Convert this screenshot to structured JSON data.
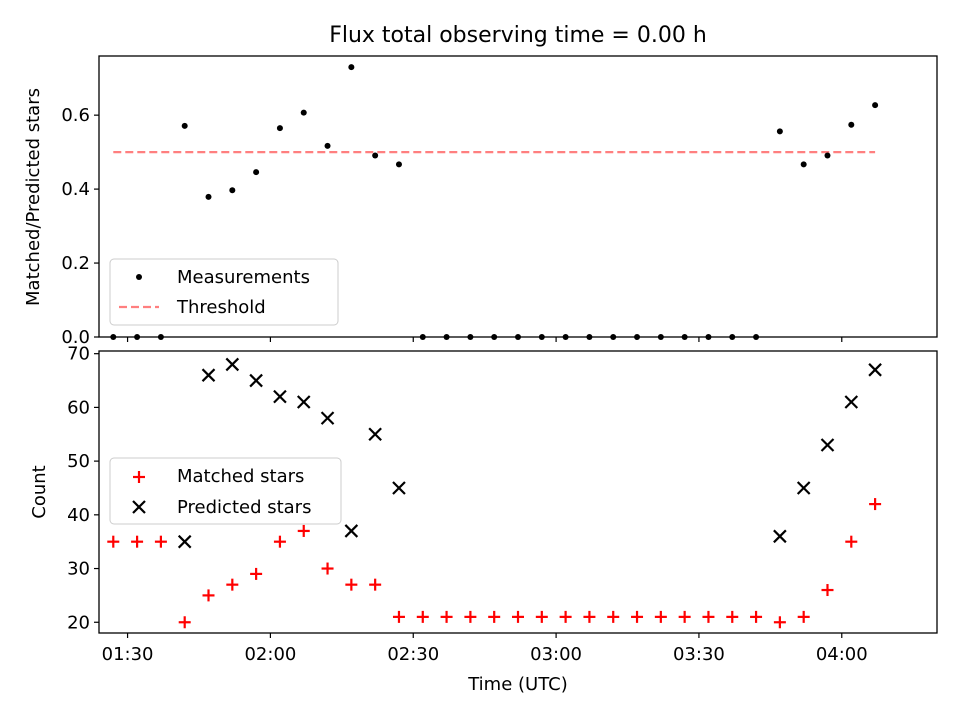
{
  "chart_data": [
    {
      "type": "scatter",
      "title": "Flux total observing time = 0.00 h",
      "ylabel": "Matched/Predicted stars",
      "xlim": [
        "01:24",
        "04:20"
      ],
      "ylim": [
        0,
        0.76
      ],
      "yticks": [
        0.0,
        0.2,
        0.4,
        0.6
      ],
      "ytick_labels": [
        "0.0",
        "0.2",
        "0.4",
        "0.6"
      ],
      "series": [
        {
          "name": "Measurements",
          "marker": "dot",
          "color": "#000000",
          "x": [
            "01:27",
            "01:32",
            "01:37",
            "01:42",
            "01:47",
            "01:52",
            "01:57",
            "02:02",
            "02:07",
            "02:12",
            "02:17",
            "02:22",
            "02:27",
            "02:32",
            "02:37",
            "02:42",
            "02:47",
            "02:52",
            "02:57",
            "03:02",
            "03:07",
            "03:12",
            "03:17",
            "03:22",
            "03:27",
            "03:32",
            "03:37",
            "03:42",
            "03:47",
            "03:52",
            "03:57",
            "04:02",
            "04:07"
          ],
          "y": [
            0,
            0,
            0,
            0.571,
            0.379,
            0.397,
            0.446,
            0.565,
            0.607,
            0.517,
            0.73,
            0.491,
            0.467,
            0,
            0,
            0,
            0,
            0,
            0,
            0,
            0,
            0,
            0,
            0,
            0,
            0,
            0,
            0,
            0.556,
            0.467,
            0.491,
            0.574,
            0.627
          ]
        },
        {
          "name": "Threshold",
          "style": "dashed-line",
          "color": "#ff7f7f",
          "x": [
            "01:27",
            "04:07"
          ],
          "y": [
            0.5,
            0.5
          ]
        }
      ],
      "legend": {
        "placement": "lower-left"
      }
    },
    {
      "type": "scatter",
      "xlabel": "Time (UTC)",
      "ylabel": "Count",
      "xlim": [
        "01:24",
        "04:20"
      ],
      "ylim": [
        18,
        70.5
      ],
      "xticks": [
        "01:30",
        "02:00",
        "02:30",
        "03:00",
        "03:30",
        "04:00"
      ],
      "xtick_labels": [
        "01:30",
        "02:00",
        "02:30",
        "03:00",
        "03:30",
        "04:00"
      ],
      "yticks": [
        20,
        30,
        40,
        50,
        60,
        70
      ],
      "ytick_labels": [
        "20",
        "30",
        "40",
        "50",
        "60",
        "70"
      ],
      "series": [
        {
          "name": "Matched stars",
          "marker": "plus",
          "color": "#ff0000",
          "x": [
            "01:27",
            "01:32",
            "01:37",
            "01:42",
            "01:47",
            "01:52",
            "01:57",
            "02:02",
            "02:07",
            "02:12",
            "02:17",
            "02:22",
            "02:27",
            "02:32",
            "02:37",
            "02:42",
            "02:47",
            "02:52",
            "02:57",
            "03:02",
            "03:07",
            "03:12",
            "03:17",
            "03:22",
            "03:27",
            "03:32",
            "03:37",
            "03:42",
            "03:47",
            "03:52",
            "03:57",
            "04:02",
            "04:07"
          ],
          "y": [
            35,
            35,
            35,
            20,
            25,
            27,
            29,
            35,
            37,
            30,
            27,
            27,
            21,
            21,
            21,
            21,
            21,
            21,
            21,
            21,
            21,
            21,
            21,
            21,
            21,
            21,
            21,
            21,
            20,
            21,
            26,
            35,
            42
          ]
        },
        {
          "name": "Predicted stars",
          "marker": "x",
          "color": "#000000",
          "x": [
            "01:42",
            "01:47",
            "01:52",
            "01:57",
            "02:02",
            "02:07",
            "02:12",
            "02:17",
            "02:22",
            "02:27",
            "03:47",
            "03:52",
            "03:57",
            "04:02",
            "04:07"
          ],
          "y": [
            35,
            66,
            68,
            65,
            62,
            61,
            58,
            37,
            55,
            45,
            36,
            45,
            53,
            61,
            67
          ]
        }
      ],
      "legend": {
        "placement": "center-left"
      }
    }
  ]
}
